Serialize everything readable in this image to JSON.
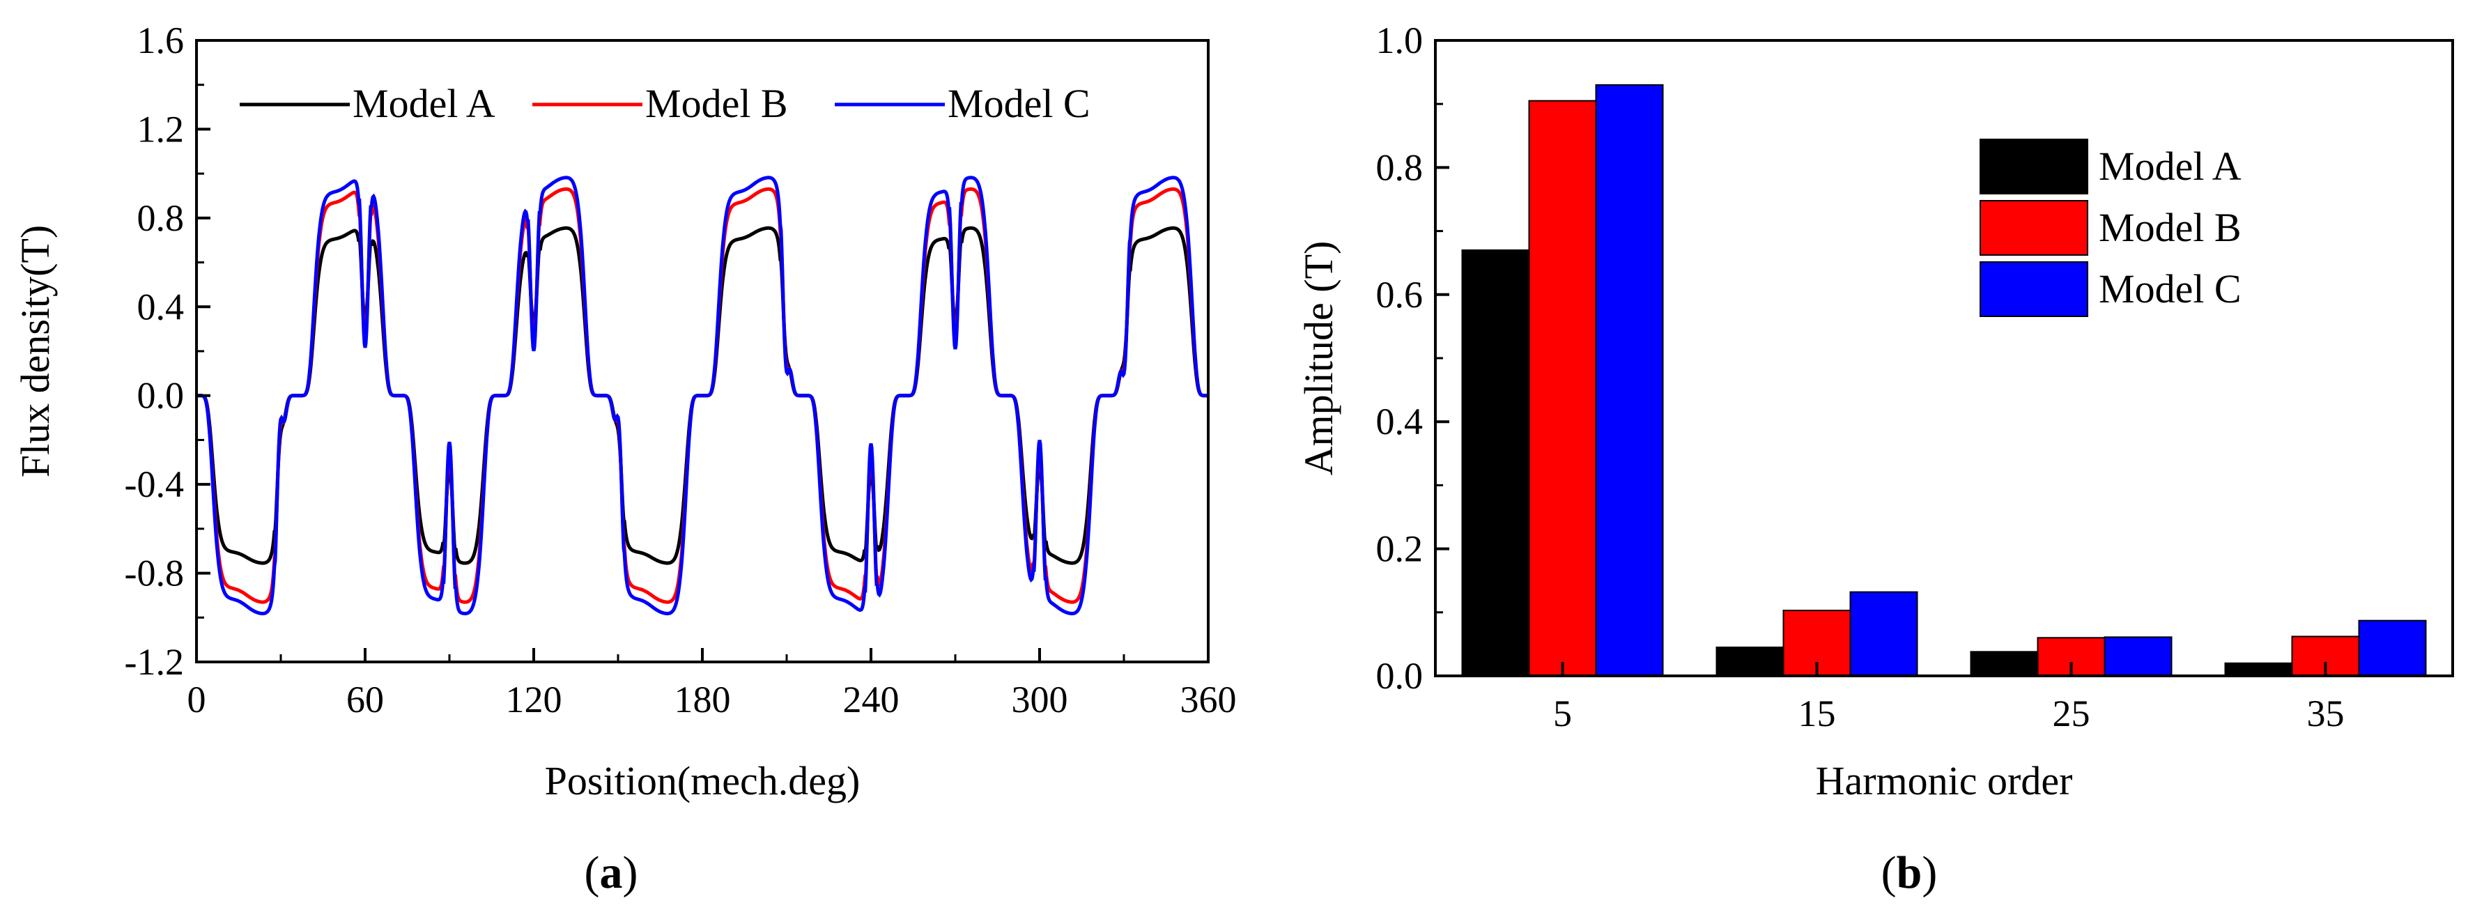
{
  "colors": {
    "model_a": "#000000",
    "model_b": "#ff0000",
    "model_c": "#0000ff"
  },
  "chart_data": [
    {
      "type": "line",
      "caption_open": "(",
      "caption_letter": "a",
      "caption_close": ")",
      "xlabel": "Position(mech.deg)",
      "ylabel": "Flux density(T)",
      "xlim": [
        0,
        360
      ],
      "ylim": [
        -1.2,
        1.6
      ],
      "xticks": [
        "0",
        "60",
        "120",
        "180",
        "240",
        "300",
        "360"
      ],
      "yticks": [
        "-1.2",
        "-0.8",
        "-0.4",
        "0.0",
        "0.4",
        "0.8",
        "1.2",
        "1.6"
      ],
      "legend_position": "top",
      "series": [
        {
          "name": "Model A",
          "color": "#000000",
          "amplitude": 0.73,
          "slot_dip": 0.55
        },
        {
          "name": "Model B",
          "color": "#ff0000",
          "amplitude": 0.9,
          "slot_dip": 0.72
        },
        {
          "name": "Model C",
          "color": "#0000ff",
          "amplitude": 0.95,
          "slot_dip": 0.78
        }
      ],
      "pole_pitch_deg": 36,
      "first_pole_center_deg": 18,
      "x": [
        0,
        12,
        18,
        28,
        40,
        54,
        60,
        66,
        80,
        90,
        100,
        120,
        140,
        150,
        160,
        180,
        200,
        210,
        220,
        240,
        260,
        270,
        280,
        300,
        320,
        330,
        340,
        360
      ],
      "values_model_a": [
        0.0,
        -0.68,
        -0.68,
        -0.12,
        0.2,
        0.72,
        0.72,
        0.68,
        -0.2,
        -0.73,
        -0.7,
        0.72,
        0.7,
        -0.12,
        -0.68,
        0.2,
        0.68,
        0.6,
        -0.2,
        -0.72,
        0.72,
        0.74,
        0.2,
        -0.72,
        0.2,
        0.68,
        0.68,
        0.0
      ]
    },
    {
      "type": "bar",
      "caption_open": "(",
      "caption_letter": "b",
      "caption_close": ")",
      "xlabel": "Harmonic order",
      "ylabel": "Amplitude (T)",
      "ylim": [
        0.0,
        1.0
      ],
      "yticks": [
        "0.0",
        "0.2",
        "0.4",
        "0.6",
        "0.8",
        "1.0"
      ],
      "categories": [
        "5",
        "15",
        "25",
        "35"
      ],
      "legend_position": "right",
      "series": [
        {
          "name": "Model A",
          "color": "#000000",
          "values": [
            0.67,
            0.045,
            0.038,
            0.02
          ]
        },
        {
          "name": "Model B",
          "color": "#ff0000",
          "values": [
            0.905,
            0.103,
            0.06,
            0.062
          ]
        },
        {
          "name": "Model C",
          "color": "#0000ff",
          "values": [
            0.93,
            0.132,
            0.061,
            0.087
          ]
        }
      ]
    }
  ]
}
